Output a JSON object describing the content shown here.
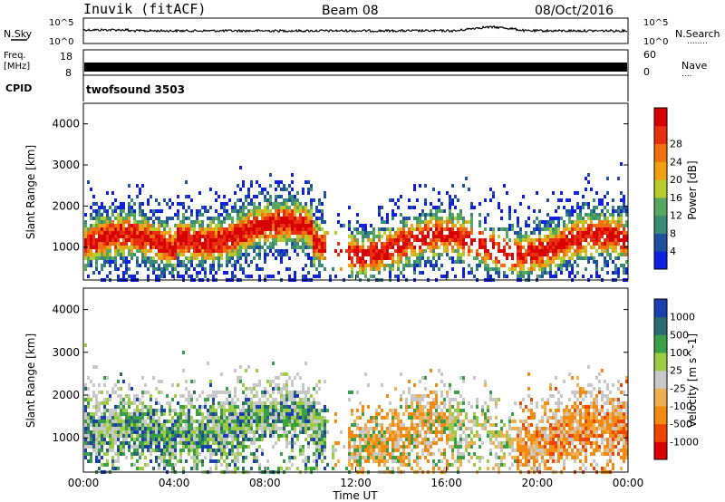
{
  "header": {
    "station": "Inuvik (fitACF)",
    "beam": "Beam 08",
    "date": "08/Oct/2016"
  },
  "panels": {
    "noise": {
      "left_label": "N.Sky",
      "right_label": "N.Search",
      "scale_top": "10^5",
      "scale_bottom": "10^0",
      "right_dots": "........"
    },
    "freq": {
      "left_label_1": "Freq.",
      "left_label_2": "[MHz]",
      "left_tick_top": "18",
      "left_tick_bottom": "8",
      "right_tick_top": "60",
      "right_tick_bottom": "0",
      "right_label": "Nave",
      "right_dots": "...."
    },
    "cpid": {
      "label": "CPID",
      "value": "twofsound 3503"
    }
  },
  "colors": {
    "power": [
      "#1020e0",
      "#2050a0",
      "#3a8a78",
      "#56a860",
      "#b8cc30",
      "#f0a010",
      "#f07010",
      "#e83010",
      "#d80000"
    ],
    "velocity": [
      "#dd0000",
      "#ee4400",
      "#f58a10",
      "#f0b050",
      "#c8c8c8",
      "#9ccc44",
      "#3aa048",
      "#2a6a70",
      "#1a40b0"
    ]
  },
  "chart_data": [
    {
      "type": "heatmap",
      "name_panel": "power",
      "ylabel": "Slant Range [km]",
      "yticks": [
        "1000",
        "2000",
        "3000",
        "4000"
      ],
      "ylim": [
        200,
        4500
      ],
      "colorbar_label": "Power [dB]",
      "colorbar_ticks": [
        "4",
        "8",
        "12",
        "16",
        "20",
        "24",
        "28"
      ],
      "xlim_hours": [
        0,
        24
      ]
    },
    {
      "type": "heatmap",
      "name_panel": "velocity",
      "ylabel": "Slant Range [km]",
      "yticks": [
        "1000",
        "2000",
        "3000",
        "4000"
      ],
      "ylim": [
        200,
        4500
      ],
      "colorbar_label": "Velocity [m s^-1]",
      "colorbar_ticks": [
        "1000",
        "500",
        "100",
        "25",
        "-25",
        "-100",
        "-500",
        "-1000"
      ],
      "xlim_hours": [
        0,
        24
      ]
    }
  ],
  "xaxis": {
    "ticks": [
      "00:00",
      "04:00",
      "08:00",
      "12:00",
      "16:00",
      "20:00",
      "00:00"
    ],
    "label": "Time UT"
  }
}
